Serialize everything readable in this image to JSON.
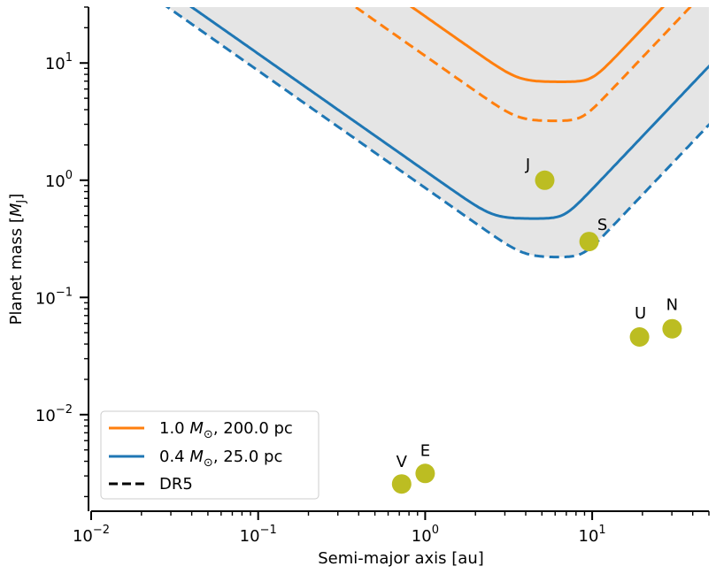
{
  "chart_data": {
    "type": "line",
    "xlabel": "Semi-major axis [au]",
    "ylabel_main": "Planet mass [",
    "ylabel_sym": "M",
    "ylabel_sub": "J",
    "ylabel_end": "]",
    "xscale": "log",
    "yscale": "log",
    "xlim": [
      0.01,
      50
    ],
    "ylim": [
      0.0015,
      30
    ],
    "x_ticks": [
      {
        "value": 0.01,
        "base": "10",
        "exp": "−2"
      },
      {
        "value": 0.1,
        "base": "10",
        "exp": "−1"
      },
      {
        "value": 1,
        "base": "10",
        "exp": "0"
      },
      {
        "value": 10,
        "base": "10",
        "exp": "1"
      }
    ],
    "y_ticks": [
      {
        "value": 0.01,
        "base": "10",
        "exp": "−2"
      },
      {
        "value": 0.1,
        "base": "10",
        "exp": "−1"
      },
      {
        "value": 1,
        "base": "10",
        "exp": "0"
      },
      {
        "value": 10,
        "base": "10",
        "exp": "1"
      }
    ],
    "series": [
      {
        "name": "1.0 M☉, 200.0 pc",
        "color": "#ff7f0e",
        "style": "solid",
        "min_a": 3.4,
        "min_m": 6.9,
        "left_coef": 25.0,
        "right_coef": 0.22
      },
      {
        "name": "1.0 M☉, 200.0 pc DR5",
        "color": "#ff7f0e",
        "style": "dashed",
        "min_a": 5.2,
        "min_m": 3.2,
        "left_coef": 11.5,
        "right_coef": 0.125
      },
      {
        "name": "0.4 M☉, 25.0 pc",
        "color": "#1f77b4",
        "style": "solid",
        "min_a": 2.6,
        "min_m": 0.47,
        "left_coef": 1.2,
        "right_coef": 0.0265
      },
      {
        "name": "0.4 M☉, 25.0 pc DR5",
        "color": "#1f77b4",
        "style": "dashed",
        "min_a": 3.9,
        "min_m": 0.22,
        "left_coef": 0.86,
        "right_coef": 0.0084
      }
    ],
    "shaded_region": {
      "color": "#e5e5e5",
      "bound": "0.4 M☉, 25.0 pc DR5"
    },
    "planets": [
      {
        "label": "V",
        "a": 0.723,
        "m": 0.00256
      },
      {
        "label": "E",
        "a": 1.0,
        "m": 0.00315
      },
      {
        "label": "J",
        "a": 5.2,
        "m": 1.0
      },
      {
        "label": "S",
        "a": 9.58,
        "m": 0.3
      },
      {
        "label": "U",
        "a": 19.2,
        "m": 0.046
      },
      {
        "label": "N",
        "a": 30.1,
        "m": 0.054
      }
    ],
    "planet_color": "#bcbd22",
    "legend": {
      "placement": "lower-left",
      "entries": [
        {
          "num": "1.0",
          "sym": "M",
          "sub": "⊙",
          "rest": ", 200.0 pc",
          "color": "#ff7f0e",
          "style": "solid"
        },
        {
          "num": "0.4",
          "sym": "M",
          "sub": "⊙",
          "rest": ", 25.0 pc",
          "color": "#1f77b4",
          "style": "solid"
        },
        {
          "text": "DR5",
          "color": "#000000",
          "style": "dashed"
        }
      ]
    }
  }
}
